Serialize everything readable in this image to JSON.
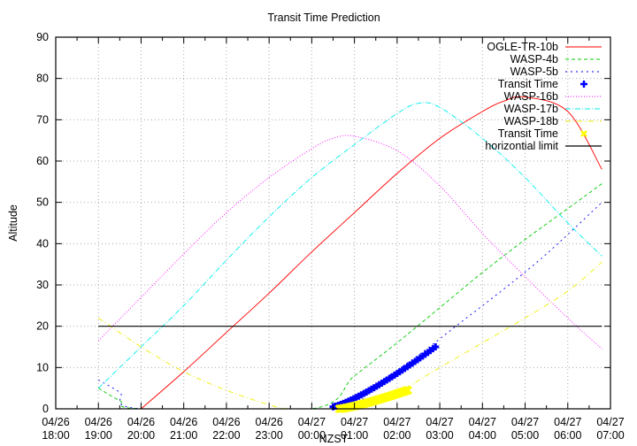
{
  "chart_data": {
    "type": "line",
    "title": "Transit Time Prediction",
    "xlabel": "NZST",
    "ylabel": "Altitude",
    "ylim": [
      0,
      90
    ],
    "yticks": [
      0,
      10,
      20,
      30,
      40,
      50,
      60,
      70,
      80,
      90
    ],
    "xlim_hours_from_1800": [
      0,
      13
    ],
    "xticks": [
      "04/26 18:00",
      "04/26 19:00",
      "04/26 20:00",
      "04/26 21:00",
      "04/26 22:00",
      "04/26 23:00",
      "04/27 00:00",
      "04/27 01:00",
      "04/27 02:00",
      "04/27 03:00",
      "04/27 04:00",
      "04/27 05:00",
      "04/27 06:00",
      "04/27 07:00"
    ],
    "grid": true,
    "legend_position": "top-right inside",
    "x_units": "hours after 04/26 18:00",
    "series": [
      {
        "name": "OGLE-TR-10b",
        "color": "#ff0000",
        "dash": "",
        "x": [
          2.0,
          3.0,
          4.0,
          5.0,
          6.0,
          7.0,
          8.0,
          9.0,
          10.0,
          10.5,
          11.0,
          12.0,
          12.8
        ],
        "y": [
          0,
          9,
          18.5,
          28,
          38,
          47.5,
          57,
          65.5,
          72,
          74.5,
          75.5,
          72,
          58
        ]
      },
      {
        "name": "WASP-4b",
        "color": "#00cc00",
        "dash": "4,3",
        "x": [
          1.0,
          1.5,
          2.0,
          6.0,
          7.0,
          8.0,
          9.0,
          10.0,
          11.0,
          12.0,
          12.8
        ],
        "y": [
          5,
          2,
          0,
          0,
          8,
          16,
          24.5,
          33,
          41,
          48.5,
          54.5
        ]
      },
      {
        "name": "WASP-5b",
        "color": "#0000ff",
        "dash": "2,4",
        "x": [
          1.0,
          1.5,
          2.0,
          6.5,
          7.5,
          8.5,
          9.5,
          10.5,
          11.5,
          12.8
        ],
        "y": [
          7,
          4,
          0,
          0,
          6,
          13,
          21,
          29,
          37.5,
          50
        ]
      },
      {
        "name": "WASP-16b",
        "color": "#ff00ff",
        "dash": "1,2",
        "x": [
          1.0,
          2.0,
          3.0,
          4.0,
          5.0,
          6.0,
          6.5,
          7.0,
          8.0,
          9.0,
          10.0,
          11.0,
          12.0,
          12.8
        ],
        "y": [
          16.5,
          27,
          37.5,
          47.5,
          56,
          63,
          65.5,
          66,
          62.5,
          54,
          42.5,
          32,
          22,
          14.5
        ]
      },
      {
        "name": "WASP-17b",
        "color": "#00eeee",
        "dash": "6,2,1,2",
        "x": [
          1.0,
          2.0,
          3.0,
          4.0,
          5.0,
          6.0,
          7.0,
          8.0,
          8.5,
          9.0,
          10.0,
          11.0,
          12.0,
          12.8
        ],
        "y": [
          5,
          15,
          25,
          36,
          46.5,
          56,
          64,
          71.5,
          74,
          73,
          65.5,
          56,
          45,
          37
        ]
      },
      {
        "name": "WASP-18b",
        "color": "#eeee00",
        "dash": "6,3,1,3",
        "x": [
          1.0,
          2.0,
          3.0,
          4.0,
          5.0,
          5.5,
          7.0,
          8.0,
          9.0,
          10.0,
          11.0,
          12.0,
          12.8
        ],
        "y": [
          22,
          15,
          9,
          4.5,
          1,
          0,
          0,
          4,
          10,
          16,
          22,
          28.5,
          35.5
        ]
      },
      {
        "name": "horizontial limit",
        "color": "#000000",
        "dash": "",
        "x": [
          1.0,
          12.8
        ],
        "y": [
          20,
          20
        ]
      }
    ],
    "transit_markers": [
      {
        "name": "Transit Time",
        "color": "#0000ff",
        "marker": "plus",
        "x_start": 6.5,
        "x_end": 8.9,
        "y_start": 0.5,
        "y_end": 15
      },
      {
        "name": "Transit Time",
        "color": "#ffff00",
        "marker": "x",
        "x_start": 6.65,
        "x_end": 8.25,
        "y_start": 0,
        "y_end": 4.5
      }
    ],
    "legend": [
      "OGLE-TR-10b",
      "WASP-4b",
      "WASP-5b",
      "Transit Time",
      "WASP-16b",
      "WASP-17b",
      "WASP-18b",
      "Transit Time",
      "horizontial limit"
    ]
  }
}
